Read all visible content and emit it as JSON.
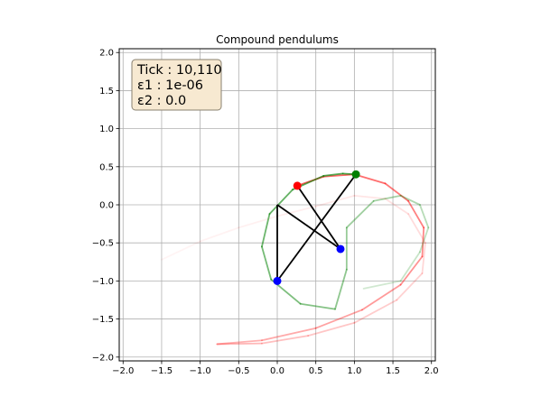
{
  "chart_data": {
    "type": "line",
    "title": "Compound pendulums",
    "xlabel": "",
    "ylabel": "",
    "xlim": [
      -2.05,
      2.05
    ],
    "ylim": [
      -2.05,
      2.05
    ],
    "grid": true,
    "xticks": [
      -2.0,
      -1.5,
      -1.0,
      -0.5,
      0.0,
      0.5,
      1.0,
      1.5,
      2.0
    ],
    "yticks": [
      -2.0,
      -1.5,
      -1.0,
      -0.5,
      0.0,
      0.5,
      1.0,
      1.5,
      2.0
    ],
    "xtick_labels": [
      "−2.0",
      "−1.5",
      "−1.0",
      "−0.5",
      "0.0",
      "0.5",
      "1.0",
      "1.5",
      "2.0"
    ],
    "ytick_labels": [
      "−2.0",
      "−1.5",
      "−1.0",
      "−0.5",
      "0.0",
      "0.5",
      "1.0",
      "1.5",
      "2.0"
    ],
    "info_box": {
      "lines": [
        "Tick : 10,110",
        "ε1 : 1e-06",
        "ε2 : 0.0"
      ],
      "facecolor": "#f7e9d1",
      "edgecolor": "#8a8170"
    },
    "series": [
      {
        "color": "#ff0000",
        "pivot": [
          0.0,
          0.0
        ],
        "bob1": [
          0.82,
          -0.58
        ],
        "bob2": [
          0.26,
          0.25
        ],
        "trail": [
          [
            -1.5,
            -0.72
          ],
          [
            -1.0,
            -0.48
          ],
          [
            -0.5,
            -0.3
          ],
          [
            0.0,
            -0.15
          ],
          [
            0.5,
            -0.02
          ],
          [
            1.0,
            0.12
          ],
          [
            1.4,
            0.08
          ],
          [
            1.7,
            -0.12
          ],
          [
            1.92,
            -0.5
          ],
          [
            1.88,
            -0.9
          ],
          [
            1.55,
            -1.25
          ],
          [
            1.0,
            -1.55
          ],
          [
            0.4,
            -1.72
          ],
          [
            -0.2,
            -1.82
          ],
          [
            -0.78,
            -1.83
          ],
          [
            -0.2,
            -1.78
          ],
          [
            0.5,
            -1.62
          ],
          [
            1.1,
            -1.38
          ],
          [
            1.6,
            -1.05
          ],
          [
            1.88,
            -0.68
          ],
          [
            1.9,
            -0.3
          ],
          [
            1.7,
            0.05
          ],
          [
            1.4,
            0.28
          ],
          [
            1.0,
            0.4
          ],
          [
            0.6,
            0.37
          ],
          [
            0.26,
            0.25
          ]
        ]
      },
      {
        "color": "#008000",
        "pivot": [
          0.0,
          0.0
        ],
        "bob1": [
          0.0,
          -1.0
        ],
        "bob2": [
          1.02,
          0.4
        ],
        "trail": [
          [
            1.12,
            -1.1
          ],
          [
            1.6,
            -1.0
          ],
          [
            1.85,
            -0.62
          ],
          [
            1.96,
            -0.3
          ],
          [
            1.85,
            0.0
          ],
          [
            1.6,
            0.12
          ],
          [
            1.25,
            0.05
          ],
          [
            0.9,
            -0.3
          ],
          [
            0.9,
            -0.85
          ],
          [
            0.75,
            -1.37
          ],
          [
            0.3,
            -1.3
          ],
          [
            -0.08,
            -0.98
          ],
          [
            -0.2,
            -0.55
          ],
          [
            -0.1,
            -0.12
          ],
          [
            0.2,
            0.2
          ],
          [
            0.6,
            0.38
          ],
          [
            0.85,
            0.41
          ],
          [
            1.02,
            0.4
          ]
        ]
      }
    ]
  }
}
